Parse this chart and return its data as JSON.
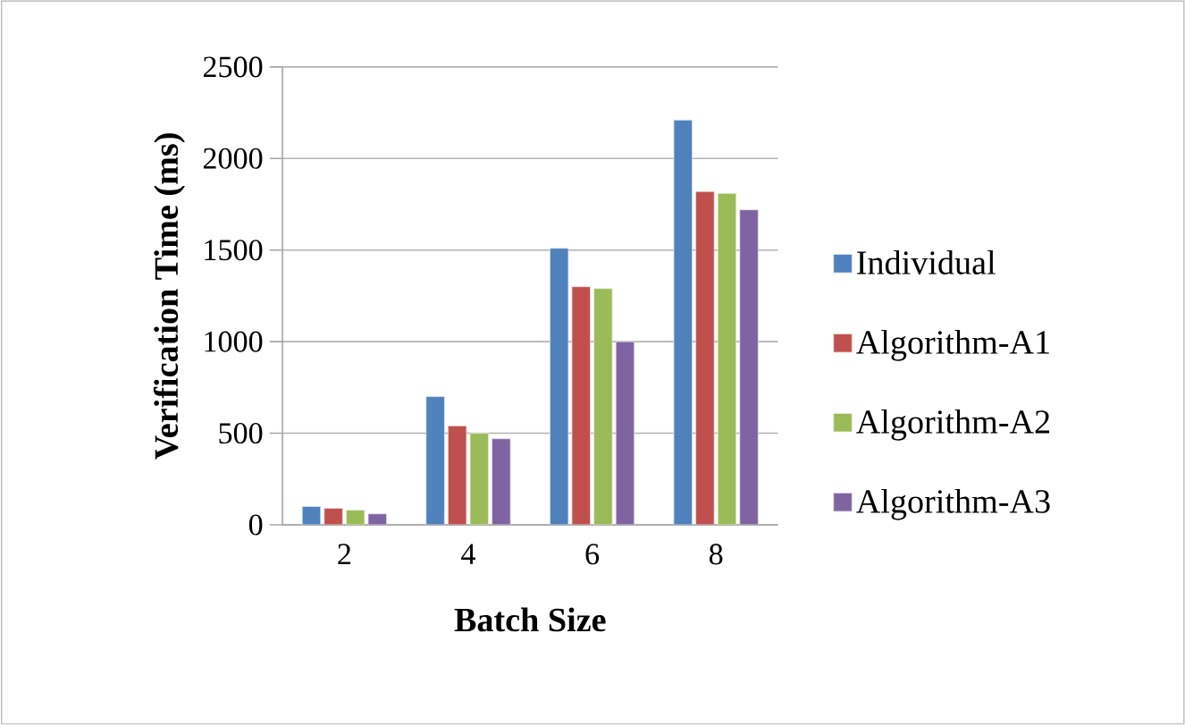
{
  "chart_data": {
    "type": "bar",
    "xlabel": "Batch Size",
    "ylabel": "Verification Time (ms)",
    "categories": [
      "2",
      "4",
      "6",
      "8"
    ],
    "series": [
      {
        "name": "Individual",
        "color": "#4f81bd",
        "values": [
          100,
          700,
          1510,
          2210
        ]
      },
      {
        "name": "Algorithm-A1",
        "color": "#c0504d",
        "values": [
          90,
          540,
          1300,
          1820
        ]
      },
      {
        "name": "Algorithm-A2",
        "color": "#9bbb59",
        "values": [
          80,
          500,
          1290,
          1810
        ]
      },
      {
        "name": "Algorithm-A3",
        "color": "#8064a2",
        "values": [
          60,
          470,
          1000,
          1720
        ]
      }
    ],
    "ylim": [
      0,
      2500
    ],
    "yticks": [
      0,
      500,
      1000,
      1500,
      2000,
      2500
    ],
    "grid": "y",
    "legend": "right"
  }
}
